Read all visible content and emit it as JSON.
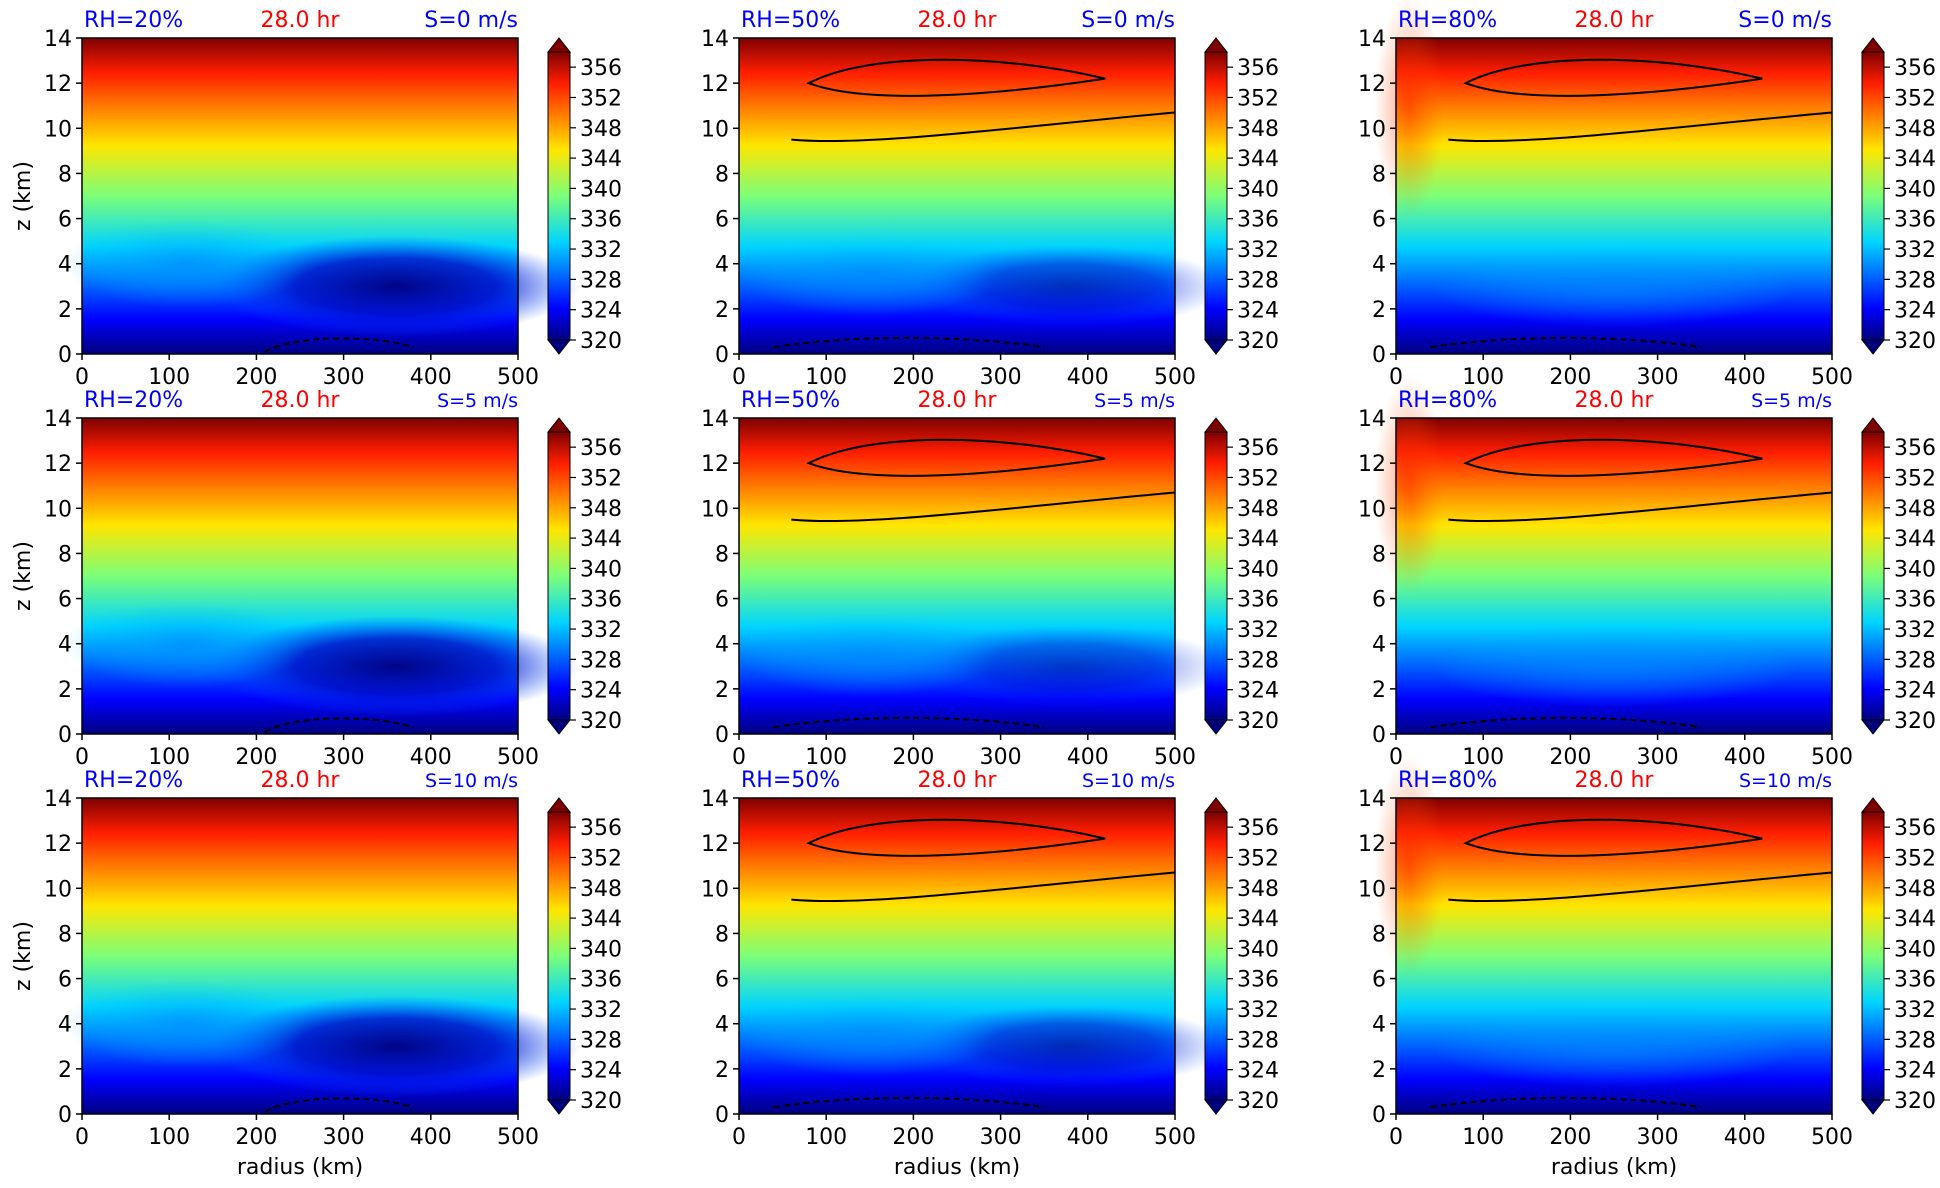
{
  "figure": {
    "colorbar_ticks": [
      "320",
      "324",
      "328",
      "332",
      "336",
      "340",
      "344",
      "348",
      "352",
      "356"
    ],
    "x_ticks": [
      "0",
      "100",
      "200",
      "300",
      "400",
      "500"
    ],
    "y_ticks": [
      "0",
      "2",
      "4",
      "6",
      "8",
      "10",
      "12",
      "14"
    ],
    "xlabel": "radius (km)",
    "ylabel": "z (km)",
    "colors": {
      "label_blue": "#0000ff",
      "label_red": "#ff0000"
    }
  },
  "chart_data": [
    {
      "type": "heatmap",
      "title_left": "RH=20%",
      "title_center": "28.0 hr",
      "title_right": "S=0 m/s",
      "xlabel": "",
      "ylabel": "z (km)",
      "xlim": [
        0,
        500
      ],
      "ylim": [
        0,
        14
      ],
      "colorbar_range": [
        320,
        358
      ],
      "colormap": "jet",
      "cold_core_strength": 1.0
    },
    {
      "type": "heatmap",
      "title_left": "RH=50%",
      "title_center": "28.0 hr",
      "title_right": "S=0 m/s",
      "xlabel": "",
      "ylabel": "",
      "xlim": [
        0,
        500
      ],
      "ylim": [
        0,
        14
      ],
      "colorbar_range": [
        320,
        358
      ],
      "colormap": "jet",
      "cold_core_strength": 0.55
    },
    {
      "type": "heatmap",
      "title_left": "RH=80%",
      "title_center": "28.0 hr",
      "title_right": "S=0 m/s",
      "xlabel": "",
      "ylabel": "",
      "xlim": [
        0,
        500
      ],
      "ylim": [
        0,
        14
      ],
      "colorbar_range": [
        320,
        358
      ],
      "colormap": "jet",
      "cold_core_strength": 0.2
    },
    {
      "type": "heatmap",
      "title_left": "RH=20%",
      "title_center": "28.0 hr",
      "title_right": "S=5 m/s",
      "xlabel": "",
      "ylabel": "z (km)",
      "xlim": [
        0,
        500
      ],
      "ylim": [
        0,
        14
      ],
      "colorbar_range": [
        320,
        358
      ],
      "colormap": "jet",
      "cold_core_strength": 1.0
    },
    {
      "type": "heatmap",
      "title_left": "RH=50%",
      "title_center": "28.0 hr",
      "title_right": "S=5 m/s",
      "xlabel": "",
      "ylabel": "",
      "xlim": [
        0,
        500
      ],
      "ylim": [
        0,
        14
      ],
      "colorbar_range": [
        320,
        358
      ],
      "colormap": "jet",
      "cold_core_strength": 0.45
    },
    {
      "type": "heatmap",
      "title_left": "RH=80%",
      "title_center": "28.0 hr",
      "title_right": "S=5 m/s",
      "xlabel": "",
      "ylabel": "",
      "xlim": [
        0,
        500
      ],
      "ylim": [
        0,
        14
      ],
      "colorbar_range": [
        320,
        358
      ],
      "colormap": "jet",
      "cold_core_strength": 0.2
    },
    {
      "type": "heatmap",
      "title_left": "RH=20%",
      "title_center": "28.0 hr",
      "title_right": "S=10 m/s",
      "xlabel": "radius (km)",
      "ylabel": "z (km)",
      "xlim": [
        0,
        500
      ],
      "ylim": [
        0,
        14
      ],
      "colorbar_range": [
        320,
        358
      ],
      "colormap": "jet",
      "cold_core_strength": 1.0
    },
    {
      "type": "heatmap",
      "title_left": "RH=50%",
      "title_center": "28.0 hr",
      "title_right": "S=10 m/s",
      "xlabel": "radius (km)",
      "ylabel": "",
      "xlim": [
        0,
        500
      ],
      "ylim": [
        0,
        14
      ],
      "colorbar_range": [
        320,
        358
      ],
      "colormap": "jet",
      "cold_core_strength": 0.6
    },
    {
      "type": "heatmap",
      "title_left": "RH=80%",
      "title_center": "28.0 hr",
      "title_right": "S=10 m/s",
      "xlabel": "radius (km)",
      "ylabel": "",
      "xlim": [
        0,
        500
      ],
      "ylim": [
        0,
        14
      ],
      "colorbar_range": [
        320,
        358
      ],
      "colormap": "jet",
      "cold_core_strength": 0.2
    }
  ]
}
